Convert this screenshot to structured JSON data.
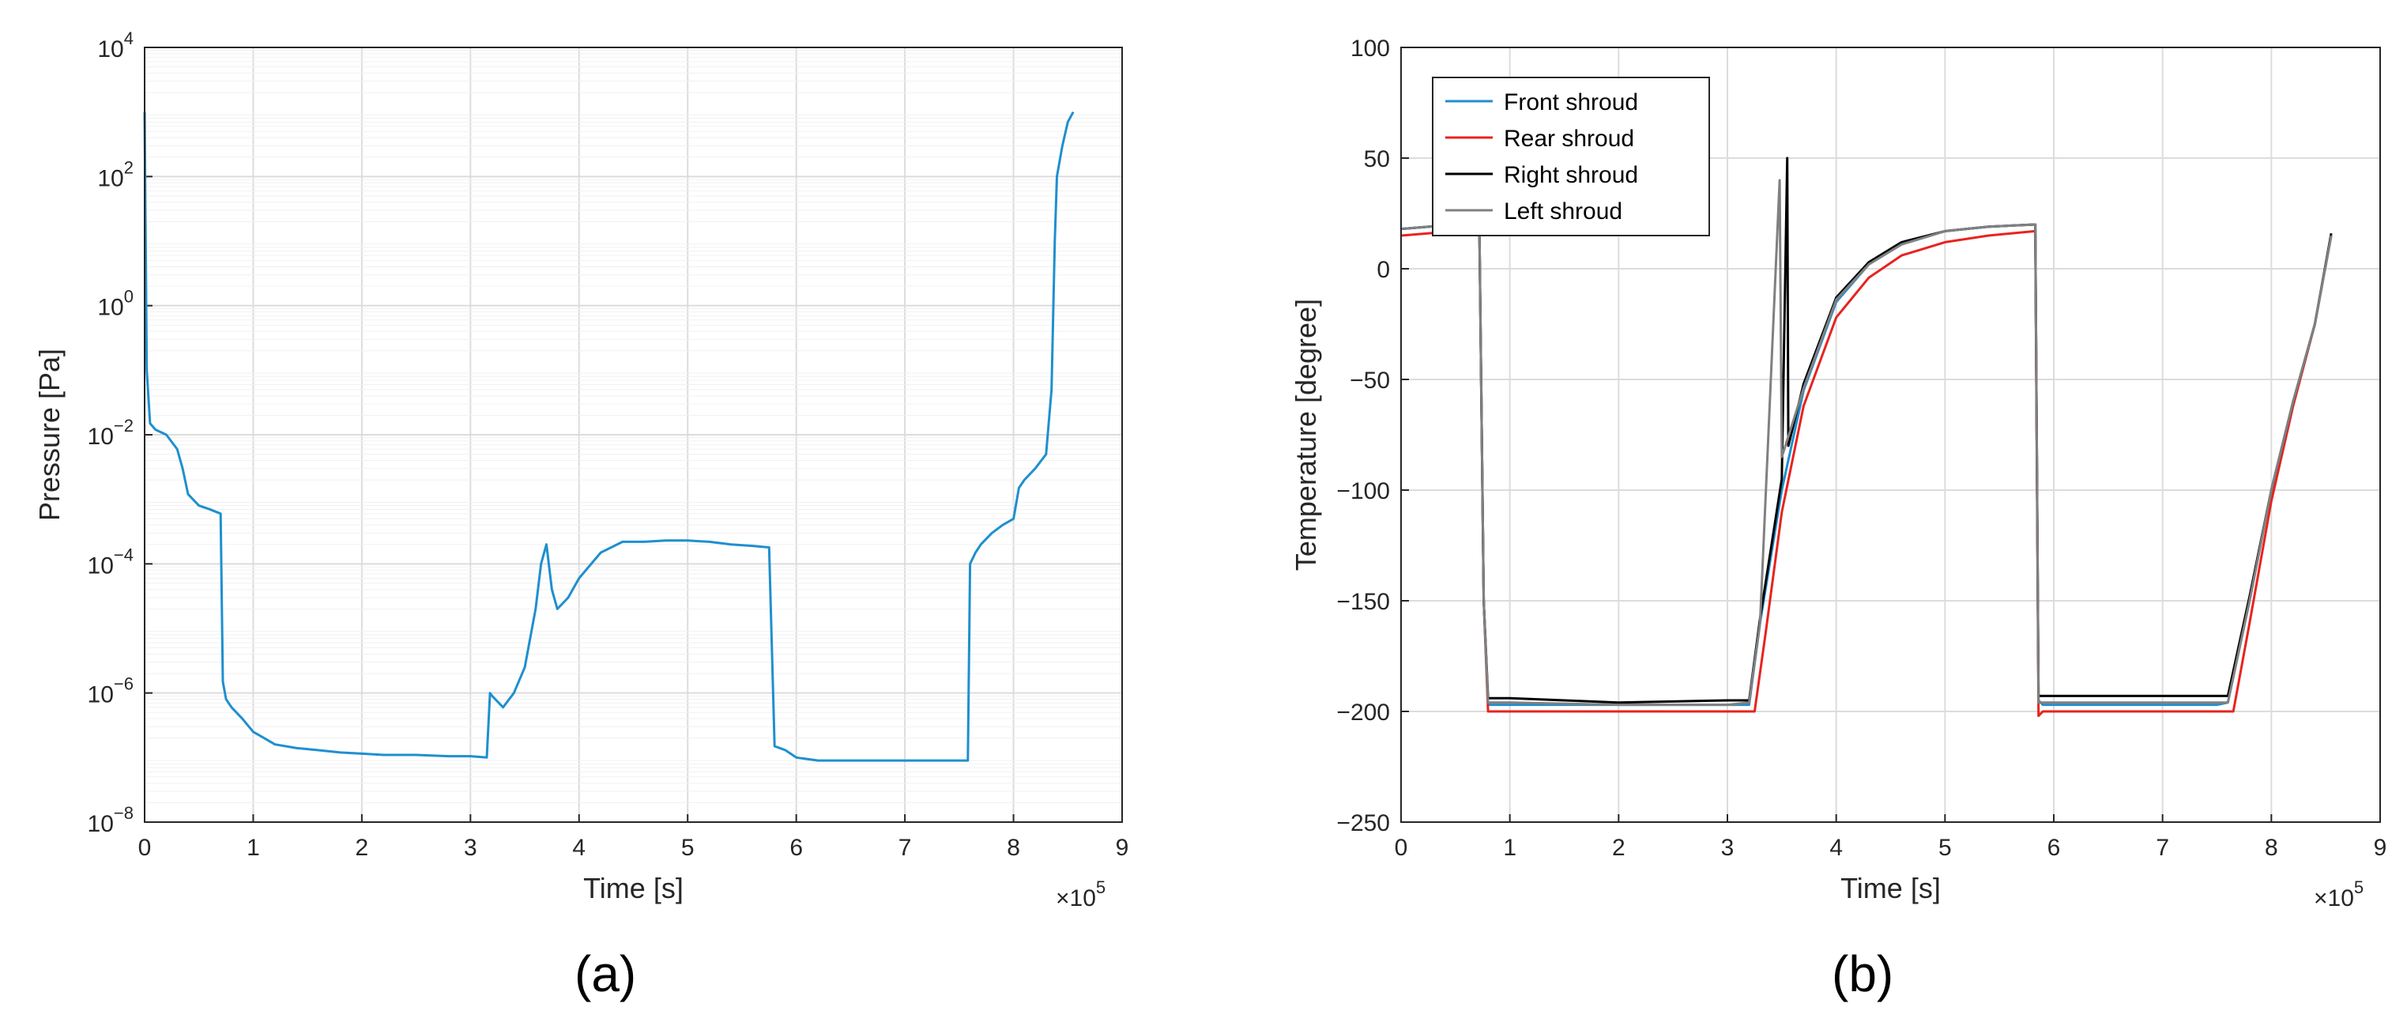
{
  "chart_data": [
    {
      "type": "line",
      "panel_label": "(a)",
      "xlabel": "Time [s]",
      "ylabel": "Pressure [Pa]",
      "x_multiplier": "×10",
      "x_multiplier_exp": "5",
      "xlim": [
        0,
        9
      ],
      "xticks": [
        "0",
        "1",
        "2",
        "3",
        "4",
        "5",
        "6",
        "7",
        "8",
        "9"
      ],
      "y_scale": "log",
      "ylim": [
        1e-08,
        10000.0
      ],
      "yticks": [
        {
          "base": "10",
          "exp": "−8",
          "value": 1e-08
        },
        {
          "base": "10",
          "exp": "−6",
          "value": 1e-06
        },
        {
          "base": "10",
          "exp": "−4",
          "value": 0.0001
        },
        {
          "base": "10",
          "exp": "−2",
          "value": 0.01
        },
        {
          "base": "10",
          "exp": "0",
          "value": 1
        },
        {
          "base": "10",
          "exp": "2",
          "value": 100.0
        },
        {
          "base": "10",
          "exp": "4",
          "value": 10000.0
        }
      ],
      "grid": true,
      "series": [
        {
          "color": "#1f8fcf",
          "x": [
            0.0,
            0.02,
            0.05,
            0.1,
            0.2,
            0.3,
            0.35,
            0.4,
            0.5,
            0.6,
            0.7,
            0.72,
            0.75,
            0.8,
            0.9,
            1.0,
            1.1,
            1.2,
            1.4,
            1.6,
            1.8,
            2.0,
            2.2,
            2.5,
            2.8,
            3.0,
            3.15,
            3.18,
            3.2,
            3.3,
            3.4,
            3.5,
            3.6,
            3.65,
            3.7,
            3.75,
            3.8,
            3.9,
            4.0,
            4.2,
            4.4,
            4.6,
            4.8,
            5.0,
            5.2,
            5.4,
            5.6,
            5.75,
            5.8,
            5.85,
            5.9,
            6.0,
            6.2,
            6.5,
            7.0,
            7.5,
            7.58,
            7.6,
            7.65,
            7.7,
            7.8,
            7.9,
            8.0,
            8.05,
            8.1,
            8.2,
            8.3,
            8.35,
            8.38,
            8.4,
            8.45,
            8.5,
            8.55
          ],
          "y": [
            1000,
            0.1,
            0.015,
            0.012,
            0.01,
            0.006,
            0.003,
            0.0012,
            0.0008,
            0.0007,
            0.0006,
            1.5e-06,
            8e-07,
            6e-07,
            4e-07,
            2.5e-07,
            2e-07,
            1.6e-07,
            1.4e-07,
            1.3e-07,
            1.2e-07,
            1.15e-07,
            1.1e-07,
            1.1e-07,
            1.05e-07,
            1.05e-07,
            1e-07,
            1e-06,
            9e-07,
            6e-07,
            1e-06,
            2.5e-06,
            2e-05,
            0.0001,
            0.0002,
            4e-05,
            2e-05,
            3e-05,
            6e-05,
            0.00015,
            0.00022,
            0.00022,
            0.00023,
            0.00023,
            0.00022,
            0.0002,
            0.00019,
            0.00018,
            1.5e-07,
            1.4e-07,
            1.3e-07,
            1e-07,
            9e-08,
            9e-08,
            9e-08,
            9e-08,
            9e-08,
            0.0001,
            0.00015,
            0.0002,
            0.0003,
            0.0004,
            0.0005,
            0.0015,
            0.002,
            0.003,
            0.005,
            0.05,
            10,
            100,
            300,
            700,
            1000
          ]
        }
      ]
    },
    {
      "type": "line",
      "panel_label": "(b)",
      "xlabel": "Time [s]",
      "ylabel": "Temperature [degree]",
      "x_multiplier": "×10",
      "x_multiplier_exp": "5",
      "xlim": [
        0,
        9
      ],
      "xticks": [
        "0",
        "1",
        "2",
        "3",
        "4",
        "5",
        "6",
        "7",
        "8",
        "9"
      ],
      "ylim": [
        -250,
        100
      ],
      "yticks": [
        "100",
        "50",
        "0",
        "−50",
        "−100",
        "−150",
        "−200",
        "−250"
      ],
      "ytick_values": [
        100,
        50,
        0,
        -50,
        -100,
        -150,
        -200,
        -250
      ],
      "grid": true,
      "legend_position": "top-left",
      "series": [
        {
          "name": "Front shroud",
          "color": "#1f8fcf",
          "x": [
            0,
            0.5,
            0.72,
            0.76,
            0.8,
            1.0,
            2.0,
            3.0,
            3.2,
            3.3,
            3.5,
            3.7,
            4.0,
            4.3,
            4.6,
            5.0,
            5.4,
            5.83,
            5.86,
            5.9,
            6.5,
            7.0,
            7.5,
            7.6,
            7.8,
            8.0,
            8.2,
            8.4,
            8.55
          ],
          "y": [
            18,
            20,
            20,
            -150,
            -197,
            -197,
            -197,
            -197,
            -197,
            -160,
            -100,
            -55,
            -15,
            2,
            11,
            17,
            19,
            20,
            -195,
            -197,
            -197,
            -197,
            -197,
            -196,
            -150,
            -100,
            -60,
            -25,
            15
          ]
        },
        {
          "name": "Rear shroud",
          "color": "#e8231e",
          "x": [
            0,
            0.5,
            0.72,
            0.76,
            0.8,
            1.0,
            2.0,
            3.0,
            3.25,
            3.35,
            3.5,
            3.7,
            4.0,
            4.3,
            4.6,
            5.0,
            5.4,
            5.83,
            5.86,
            5.9,
            6.5,
            7.0,
            7.5,
            7.65,
            7.8,
            8.0,
            8.2,
            8.4,
            8.55
          ],
          "y": [
            15,
            17,
            18,
            -150,
            -200,
            -200,
            -200,
            -200,
            -200,
            -165,
            -110,
            -62,
            -22,
            -4,
            6,
            12,
            15,
            17,
            -202,
            -200,
            -200,
            -200,
            -200,
            -200,
            -160,
            -105,
            -62,
            -25,
            15
          ]
        },
        {
          "name": "Right shroud",
          "color": "#000000",
          "x": [
            0,
            0.5,
            0.72,
            0.76,
            0.8,
            1.0,
            2.0,
            3.0,
            3.2,
            3.3,
            3.5,
            3.55,
            3.56,
            3.57,
            3.7,
            4.0,
            4.3,
            4.6,
            5.0,
            5.4,
            5.83,
            5.86,
            5.9,
            6.5,
            7.0,
            7.5,
            7.6,
            7.8,
            8.0,
            8.2,
            8.4,
            8.55
          ],
          "y": [
            18,
            20,
            20,
            -150,
            -194,
            -194,
            -196,
            -195,
            -195,
            -158,
            -95,
            50,
            -80,
            -78,
            -52,
            -13,
            3,
            12,
            17,
            19,
            20,
            -193,
            -193,
            -193,
            -193,
            -193,
            -193,
            -148,
            -100,
            -60,
            -25,
            16
          ]
        },
        {
          "name": "Left shroud",
          "color": "#808080",
          "x": [
            0,
            0.5,
            0.72,
            0.76,
            0.8,
            1.0,
            2.0,
            3.0,
            3.2,
            3.3,
            3.48,
            3.5,
            3.52,
            3.7,
            4.0,
            4.3,
            4.6,
            5.0,
            5.4,
            5.83,
            5.86,
            5.9,
            6.5,
            7.0,
            7.5,
            7.6,
            7.8,
            8.0,
            8.2,
            8.4,
            8.55
          ],
          "y": [
            18,
            20,
            20,
            -150,
            -196,
            -196,
            -197,
            -197,
            -196,
            -160,
            40,
            -85,
            -82,
            -54,
            -14,
            2,
            11,
            17,
            19,
            20,
            -196,
            -196,
            -196,
            -196,
            -196,
            -196,
            -150,
            -100,
            -60,
            -25,
            15
          ]
        }
      ]
    }
  ]
}
